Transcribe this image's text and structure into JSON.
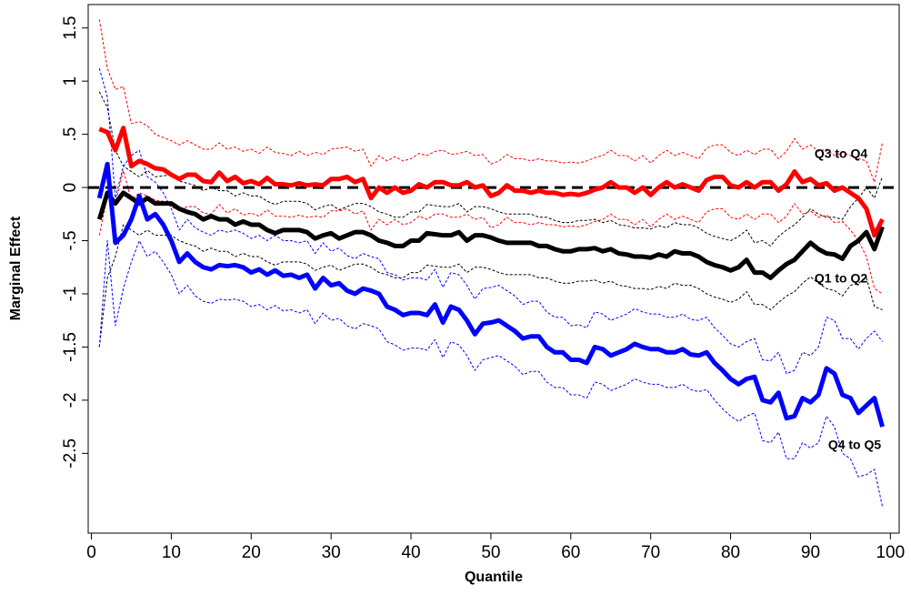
{
  "chart_data": {
    "type": "line",
    "xlabel": "Quantile",
    "ylabel": "Marginal Effect",
    "xlim": [
      -0.4,
      101.1
    ],
    "ylim": [
      -3.25,
      1.72
    ],
    "xticks": [
      0,
      10,
      20,
      30,
      40,
      50,
      60,
      70,
      80,
      90,
      100
    ],
    "yticks": [
      1.5,
      1,
      {
        "value": 0.5,
        "label": ".5"
      },
      0,
      {
        "value": -0.5,
        "label": "-.5"
      },
      -1,
      -1.5,
      -2,
      -2.5
    ],
    "hline": 0,
    "x": [
      1,
      2,
      3,
      4,
      5,
      6,
      7,
      8,
      9,
      10,
      11,
      12,
      13,
      14,
      15,
      16,
      17,
      18,
      19,
      20,
      21,
      22,
      23,
      24,
      25,
      26,
      27,
      28,
      29,
      30,
      31,
      32,
      33,
      34,
      35,
      36,
      37,
      38,
      39,
      40,
      41,
      42,
      43,
      44,
      45,
      46,
      47,
      48,
      49,
      50,
      51,
      52,
      53,
      54,
      55,
      56,
      57,
      58,
      59,
      60,
      61,
      62,
      63,
      64,
      65,
      66,
      67,
      68,
      69,
      70,
      71,
      72,
      73,
      74,
      75,
      76,
      77,
      78,
      79,
      80,
      81,
      82,
      83,
      84,
      85,
      86,
      87,
      88,
      89,
      90,
      91,
      92,
      93,
      94,
      95,
      96,
      97,
      98,
      99
    ],
    "series": [
      {
        "name": "Q1 to Q2",
        "color": "#000000",
        "values": [
          -0.3,
          -0.05,
          -0.15,
          -0.05,
          -0.1,
          -0.15,
          -0.1,
          -0.15,
          -0.15,
          -0.15,
          -0.2,
          -0.23,
          -0.25,
          -0.3,
          -0.27,
          -0.3,
          -0.3,
          -0.35,
          -0.32,
          -0.35,
          -0.35,
          -0.4,
          -0.43,
          -0.4,
          -0.4,
          -0.4,
          -0.42,
          -0.48,
          -0.45,
          -0.43,
          -0.48,
          -0.45,
          -0.42,
          -0.42,
          -0.45,
          -0.5,
          -0.52,
          -0.55,
          -0.55,
          -0.5,
          -0.5,
          -0.43,
          -0.44,
          -0.45,
          -0.45,
          -0.42,
          -0.5,
          -0.45,
          -0.45,
          -0.47,
          -0.5,
          -0.52,
          -0.52,
          -0.52,
          -0.52,
          -0.55,
          -0.55,
          -0.58,
          -0.6,
          -0.6,
          -0.58,
          -0.58,
          -0.57,
          -0.6,
          -0.58,
          -0.62,
          -0.63,
          -0.65,
          -0.65,
          -0.66,
          -0.63,
          -0.65,
          -0.6,
          -0.62,
          -0.62,
          -0.65,
          -0.7,
          -0.73,
          -0.75,
          -0.78,
          -0.75,
          -0.68,
          -0.8,
          -0.8,
          -0.85,
          -0.78,
          -0.72,
          -0.68,
          -0.6,
          -0.52,
          -0.58,
          -0.62,
          -0.63,
          -0.67,
          -0.55,
          -0.5,
          -0.42,
          -0.58,
          -0.37
        ],
        "upper": [
          0.9,
          0.75,
          0.35,
          0.2,
          0.15,
          0.1,
          0.16,
          0.1,
          0.11,
          0.12,
          0.06,
          0.04,
          0.02,
          -0.03,
          0.0,
          -0.03,
          -0.03,
          -0.08,
          -0.05,
          -0.08,
          -0.08,
          -0.13,
          -0.16,
          -0.13,
          -0.13,
          -0.13,
          -0.15,
          -0.21,
          -0.18,
          -0.16,
          -0.21,
          -0.18,
          -0.15,
          -0.15,
          -0.18,
          -0.23,
          -0.25,
          -0.28,
          -0.28,
          -0.23,
          -0.23,
          -0.16,
          -0.17,
          -0.18,
          -0.18,
          -0.15,
          -0.23,
          -0.18,
          -0.18,
          -0.2,
          -0.23,
          -0.25,
          -0.25,
          -0.25,
          -0.25,
          -0.28,
          -0.28,
          -0.31,
          -0.33,
          -0.33,
          -0.31,
          -0.31,
          -0.3,
          -0.33,
          -0.31,
          -0.35,
          -0.36,
          -0.38,
          -0.38,
          -0.39,
          -0.36,
          -0.38,
          -0.33,
          -0.35,
          -0.35,
          -0.38,
          -0.43,
          -0.46,
          -0.48,
          -0.5,
          -0.46,
          -0.4,
          -0.52,
          -0.5,
          -0.55,
          -0.46,
          -0.4,
          -0.35,
          -0.28,
          -0.2,
          -0.25,
          -0.28,
          -0.28,
          -0.3,
          -0.18,
          -0.1,
          0.0,
          -0.1,
          0.1
        ],
        "lower": [
          -1.5,
          -0.85,
          -0.65,
          -0.35,
          -0.4,
          -0.45,
          -0.4,
          -0.45,
          -0.45,
          -0.45,
          -0.5,
          -0.53,
          -0.55,
          -0.6,
          -0.57,
          -0.6,
          -0.6,
          -0.65,
          -0.62,
          -0.65,
          -0.65,
          -0.7,
          -0.73,
          -0.7,
          -0.7,
          -0.7,
          -0.72,
          -0.78,
          -0.75,
          -0.73,
          -0.78,
          -0.75,
          -0.72,
          -0.72,
          -0.75,
          -0.8,
          -0.82,
          -0.85,
          -0.85,
          -0.8,
          -0.8,
          -0.73,
          -0.74,
          -0.75,
          -0.75,
          -0.72,
          -0.8,
          -0.75,
          -0.75,
          -0.77,
          -0.8,
          -0.82,
          -0.82,
          -0.82,
          -0.82,
          -0.85,
          -0.85,
          -0.88,
          -0.9,
          -0.9,
          -0.88,
          -0.88,
          -0.87,
          -0.9,
          -0.88,
          -0.92,
          -0.93,
          -0.95,
          -0.95,
          -0.96,
          -0.93,
          -0.95,
          -0.9,
          -0.92,
          -0.92,
          -0.95,
          -1.0,
          -1.03,
          -1.05,
          -1.08,
          -1.05,
          -0.98,
          -1.1,
          -1.1,
          -1.15,
          -1.08,
          -1.02,
          -0.98,
          -0.9,
          -0.84,
          -0.9,
          -0.95,
          -0.97,
          -1.02,
          -0.92,
          -0.9,
          -0.85,
          -1.12,
          -1.15
        ]
      },
      {
        "name": "Q3 to Q4",
        "color": "#ff0000",
        "values": [
          0.55,
          0.52,
          0.35,
          0.56,
          0.2,
          0.25,
          0.22,
          0.18,
          0.17,
          0.12,
          0.08,
          0.12,
          0.12,
          0.06,
          0.05,
          0.14,
          0.06,
          0.1,
          0.04,
          0.06,
          0.03,
          0.09,
          0.03,
          0.03,
          0.02,
          0.04,
          0.02,
          0.03,
          0.02,
          0.08,
          0.08,
          0.1,
          0.05,
          0.08,
          -0.1,
          0.0,
          -0.05,
          0.0,
          -0.05,
          -0.03,
          0.03,
          0.0,
          0.05,
          0.05,
          0.02,
          0.02,
          0.05,
          0.0,
          0.02,
          -0.08,
          -0.05,
          0.02,
          -0.03,
          -0.03,
          -0.05,
          -0.03,
          -0.05,
          -0.05,
          -0.07,
          -0.06,
          -0.07,
          -0.05,
          -0.02,
          0.0,
          0.05,
          0.0,
          0.0,
          -0.05,
          0.0,
          -0.07,
          0.0,
          0.05,
          0.0,
          0.03,
          0.0,
          -0.03,
          0.07,
          0.1,
          0.1,
          0.02,
          0.0,
          0.05,
          0.0,
          0.05,
          0.05,
          -0.03,
          0.03,
          0.15,
          0.05,
          0.08,
          0.02,
          0.04,
          -0.03,
          0.0,
          -0.05,
          -0.1,
          -0.2,
          -0.45,
          -0.3
        ],
        "upper": [
          1.58,
          1.12,
          0.92,
          0.95,
          0.6,
          0.62,
          0.58,
          0.5,
          0.47,
          0.44,
          0.4,
          0.44,
          0.4,
          0.36,
          0.36,
          0.42,
          0.36,
          0.38,
          0.34,
          0.36,
          0.32,
          0.38,
          0.33,
          0.32,
          0.3,
          0.34,
          0.3,
          0.33,
          0.31,
          0.36,
          0.37,
          0.38,
          0.34,
          0.36,
          0.2,
          0.3,
          0.25,
          0.29,
          0.25,
          0.27,
          0.32,
          0.3,
          0.34,
          0.35,
          0.31,
          0.32,
          0.34,
          0.3,
          0.31,
          0.22,
          0.25,
          0.31,
          0.27,
          0.27,
          0.25,
          0.27,
          0.25,
          0.25,
          0.23,
          0.24,
          0.23,
          0.25,
          0.28,
          0.3,
          0.35,
          0.3,
          0.3,
          0.25,
          0.3,
          0.23,
          0.3,
          0.35,
          0.3,
          0.33,
          0.3,
          0.27,
          0.37,
          0.4,
          0.4,
          0.33,
          0.3,
          0.35,
          0.31,
          0.36,
          0.36,
          0.27,
          0.34,
          0.46,
          0.36,
          0.4,
          0.34,
          0.36,
          0.3,
          0.33,
          0.3,
          0.27,
          0.25,
          0.05,
          0.42
        ],
        "lower": [
          -0.45,
          -0.08,
          -0.15,
          0.16,
          -0.12,
          -0.05,
          -0.08,
          -0.12,
          -0.13,
          -0.18,
          -0.22,
          -0.18,
          -0.18,
          -0.24,
          -0.25,
          -0.16,
          -0.24,
          -0.2,
          -0.26,
          -0.24,
          -0.27,
          -0.21,
          -0.27,
          -0.27,
          -0.28,
          -0.26,
          -0.28,
          -0.27,
          -0.28,
          -0.22,
          -0.22,
          -0.2,
          -0.25,
          -0.22,
          -0.4,
          -0.3,
          -0.35,
          -0.3,
          -0.35,
          -0.33,
          -0.27,
          -0.3,
          -0.25,
          -0.25,
          -0.28,
          -0.28,
          -0.25,
          -0.3,
          -0.28,
          -0.38,
          -0.35,
          -0.28,
          -0.33,
          -0.33,
          -0.35,
          -0.33,
          -0.35,
          -0.35,
          -0.37,
          -0.36,
          -0.37,
          -0.35,
          -0.32,
          -0.3,
          -0.25,
          -0.3,
          -0.3,
          -0.35,
          -0.3,
          -0.37,
          -0.3,
          -0.25,
          -0.3,
          -0.27,
          -0.3,
          -0.33,
          -0.23,
          -0.2,
          -0.2,
          -0.28,
          -0.3,
          -0.25,
          -0.3,
          -0.25,
          -0.25,
          -0.33,
          -0.27,
          -0.15,
          -0.25,
          -0.22,
          -0.28,
          -0.26,
          -0.33,
          -0.32,
          -0.4,
          -0.5,
          -0.65,
          -0.95,
          -1.0
        ]
      },
      {
        "name": "Q4 to Q5",
        "color": "#0000ff",
        "values": [
          -0.1,
          0.22,
          -0.52,
          -0.45,
          -0.3,
          -0.08,
          -0.3,
          -0.25,
          -0.35,
          -0.5,
          -0.7,
          -0.62,
          -0.7,
          -0.75,
          -0.77,
          -0.73,
          -0.74,
          -0.73,
          -0.75,
          -0.8,
          -0.77,
          -0.82,
          -0.78,
          -0.83,
          -0.82,
          -0.85,
          -0.82,
          -0.95,
          -0.85,
          -0.92,
          -0.9,
          -0.97,
          -1.0,
          -0.95,
          -0.97,
          -1.0,
          -1.12,
          -1.15,
          -1.2,
          -1.18,
          -1.18,
          -1.2,
          -1.1,
          -1.27,
          -1.12,
          -1.15,
          -1.25,
          -1.38,
          -1.28,
          -1.27,
          -1.25,
          -1.3,
          -1.35,
          -1.42,
          -1.4,
          -1.4,
          -1.5,
          -1.55,
          -1.55,
          -1.62,
          -1.62,
          -1.65,
          -1.5,
          -1.52,
          -1.58,
          -1.55,
          -1.52,
          -1.47,
          -1.5,
          -1.52,
          -1.52,
          -1.55,
          -1.55,
          -1.52,
          -1.57,
          -1.58,
          -1.55,
          -1.65,
          -1.72,
          -1.8,
          -1.85,
          -1.8,
          -1.78,
          -2.0,
          -2.02,
          -1.93,
          -2.17,
          -2.15,
          -1.98,
          -2.02,
          -1.95,
          -1.7,
          -1.75,
          -1.95,
          -1.98,
          -2.12,
          -2.05,
          -1.98,
          -2.25
        ],
        "upper": [
          1.12,
          0.85,
          -0.1,
          0.2,
          0.3,
          0.35,
          0.1,
          0.05,
          -0.05,
          -0.2,
          -0.4,
          -0.3,
          -0.38,
          -0.42,
          -0.45,
          -0.4,
          -0.42,
          -0.4,
          -0.43,
          -0.48,
          -0.45,
          -0.5,
          -0.45,
          -0.5,
          -0.5,
          -0.52,
          -0.5,
          -0.62,
          -0.52,
          -0.6,
          -0.57,
          -0.64,
          -0.67,
          -0.62,
          -0.65,
          -0.67,
          -0.8,
          -0.82,
          -0.87,
          -0.85,
          -0.85,
          -0.87,
          -0.77,
          -0.94,
          -0.8,
          -0.82,
          -0.92,
          -1.05,
          -0.95,
          -0.94,
          -0.92,
          -0.97,
          -1.02,
          -1.1,
          -1.07,
          -1.07,
          -1.17,
          -1.22,
          -1.22,
          -1.3,
          -1.29,
          -1.32,
          -1.17,
          -1.19,
          -1.25,
          -1.22,
          -1.19,
          -1.14,
          -1.17,
          -1.19,
          -1.19,
          -1.22,
          -1.22,
          -1.19,
          -1.24,
          -1.25,
          -1.22,
          -1.32,
          -1.39,
          -1.47,
          -1.5,
          -1.45,
          -1.42,
          -1.62,
          -1.63,
          -1.55,
          -1.75,
          -1.72,
          -1.55,
          -1.58,
          -1.5,
          -1.22,
          -1.25,
          -1.42,
          -1.42,
          -1.52,
          -1.42,
          -1.35,
          -1.45
        ],
        "lower": [
          -1.5,
          -0.5,
          -1.3,
          -0.95,
          -0.7,
          -0.5,
          -0.65,
          -0.6,
          -0.7,
          -0.82,
          -1.0,
          -0.92,
          -1.02,
          -1.07,
          -1.09,
          -1.05,
          -1.06,
          -1.05,
          -1.07,
          -1.12,
          -1.1,
          -1.15,
          -1.11,
          -1.16,
          -1.15,
          -1.18,
          -1.15,
          -1.28,
          -1.18,
          -1.25,
          -1.23,
          -1.3,
          -1.33,
          -1.28,
          -1.3,
          -1.33,
          -1.45,
          -1.48,
          -1.53,
          -1.51,
          -1.51,
          -1.53,
          -1.43,
          -1.6,
          -1.45,
          -1.48,
          -1.58,
          -1.72,
          -1.62,
          -1.6,
          -1.58,
          -1.63,
          -1.68,
          -1.76,
          -1.73,
          -1.73,
          -1.83,
          -1.88,
          -1.88,
          -1.95,
          -1.95,
          -1.98,
          -1.83,
          -1.85,
          -1.91,
          -1.88,
          -1.85,
          -1.8,
          -1.83,
          -1.85,
          -1.85,
          -1.88,
          -1.88,
          -1.85,
          -1.9,
          -1.92,
          -1.9,
          -2.0,
          -2.08,
          -2.15,
          -2.2,
          -2.15,
          -2.12,
          -2.38,
          -2.4,
          -2.3,
          -2.55,
          -2.55,
          -2.4,
          -2.45,
          -2.4,
          -2.15,
          -2.25,
          -2.5,
          -2.55,
          -2.72,
          -2.7,
          -2.65,
          -3.0
        ]
      }
    ]
  }
}
